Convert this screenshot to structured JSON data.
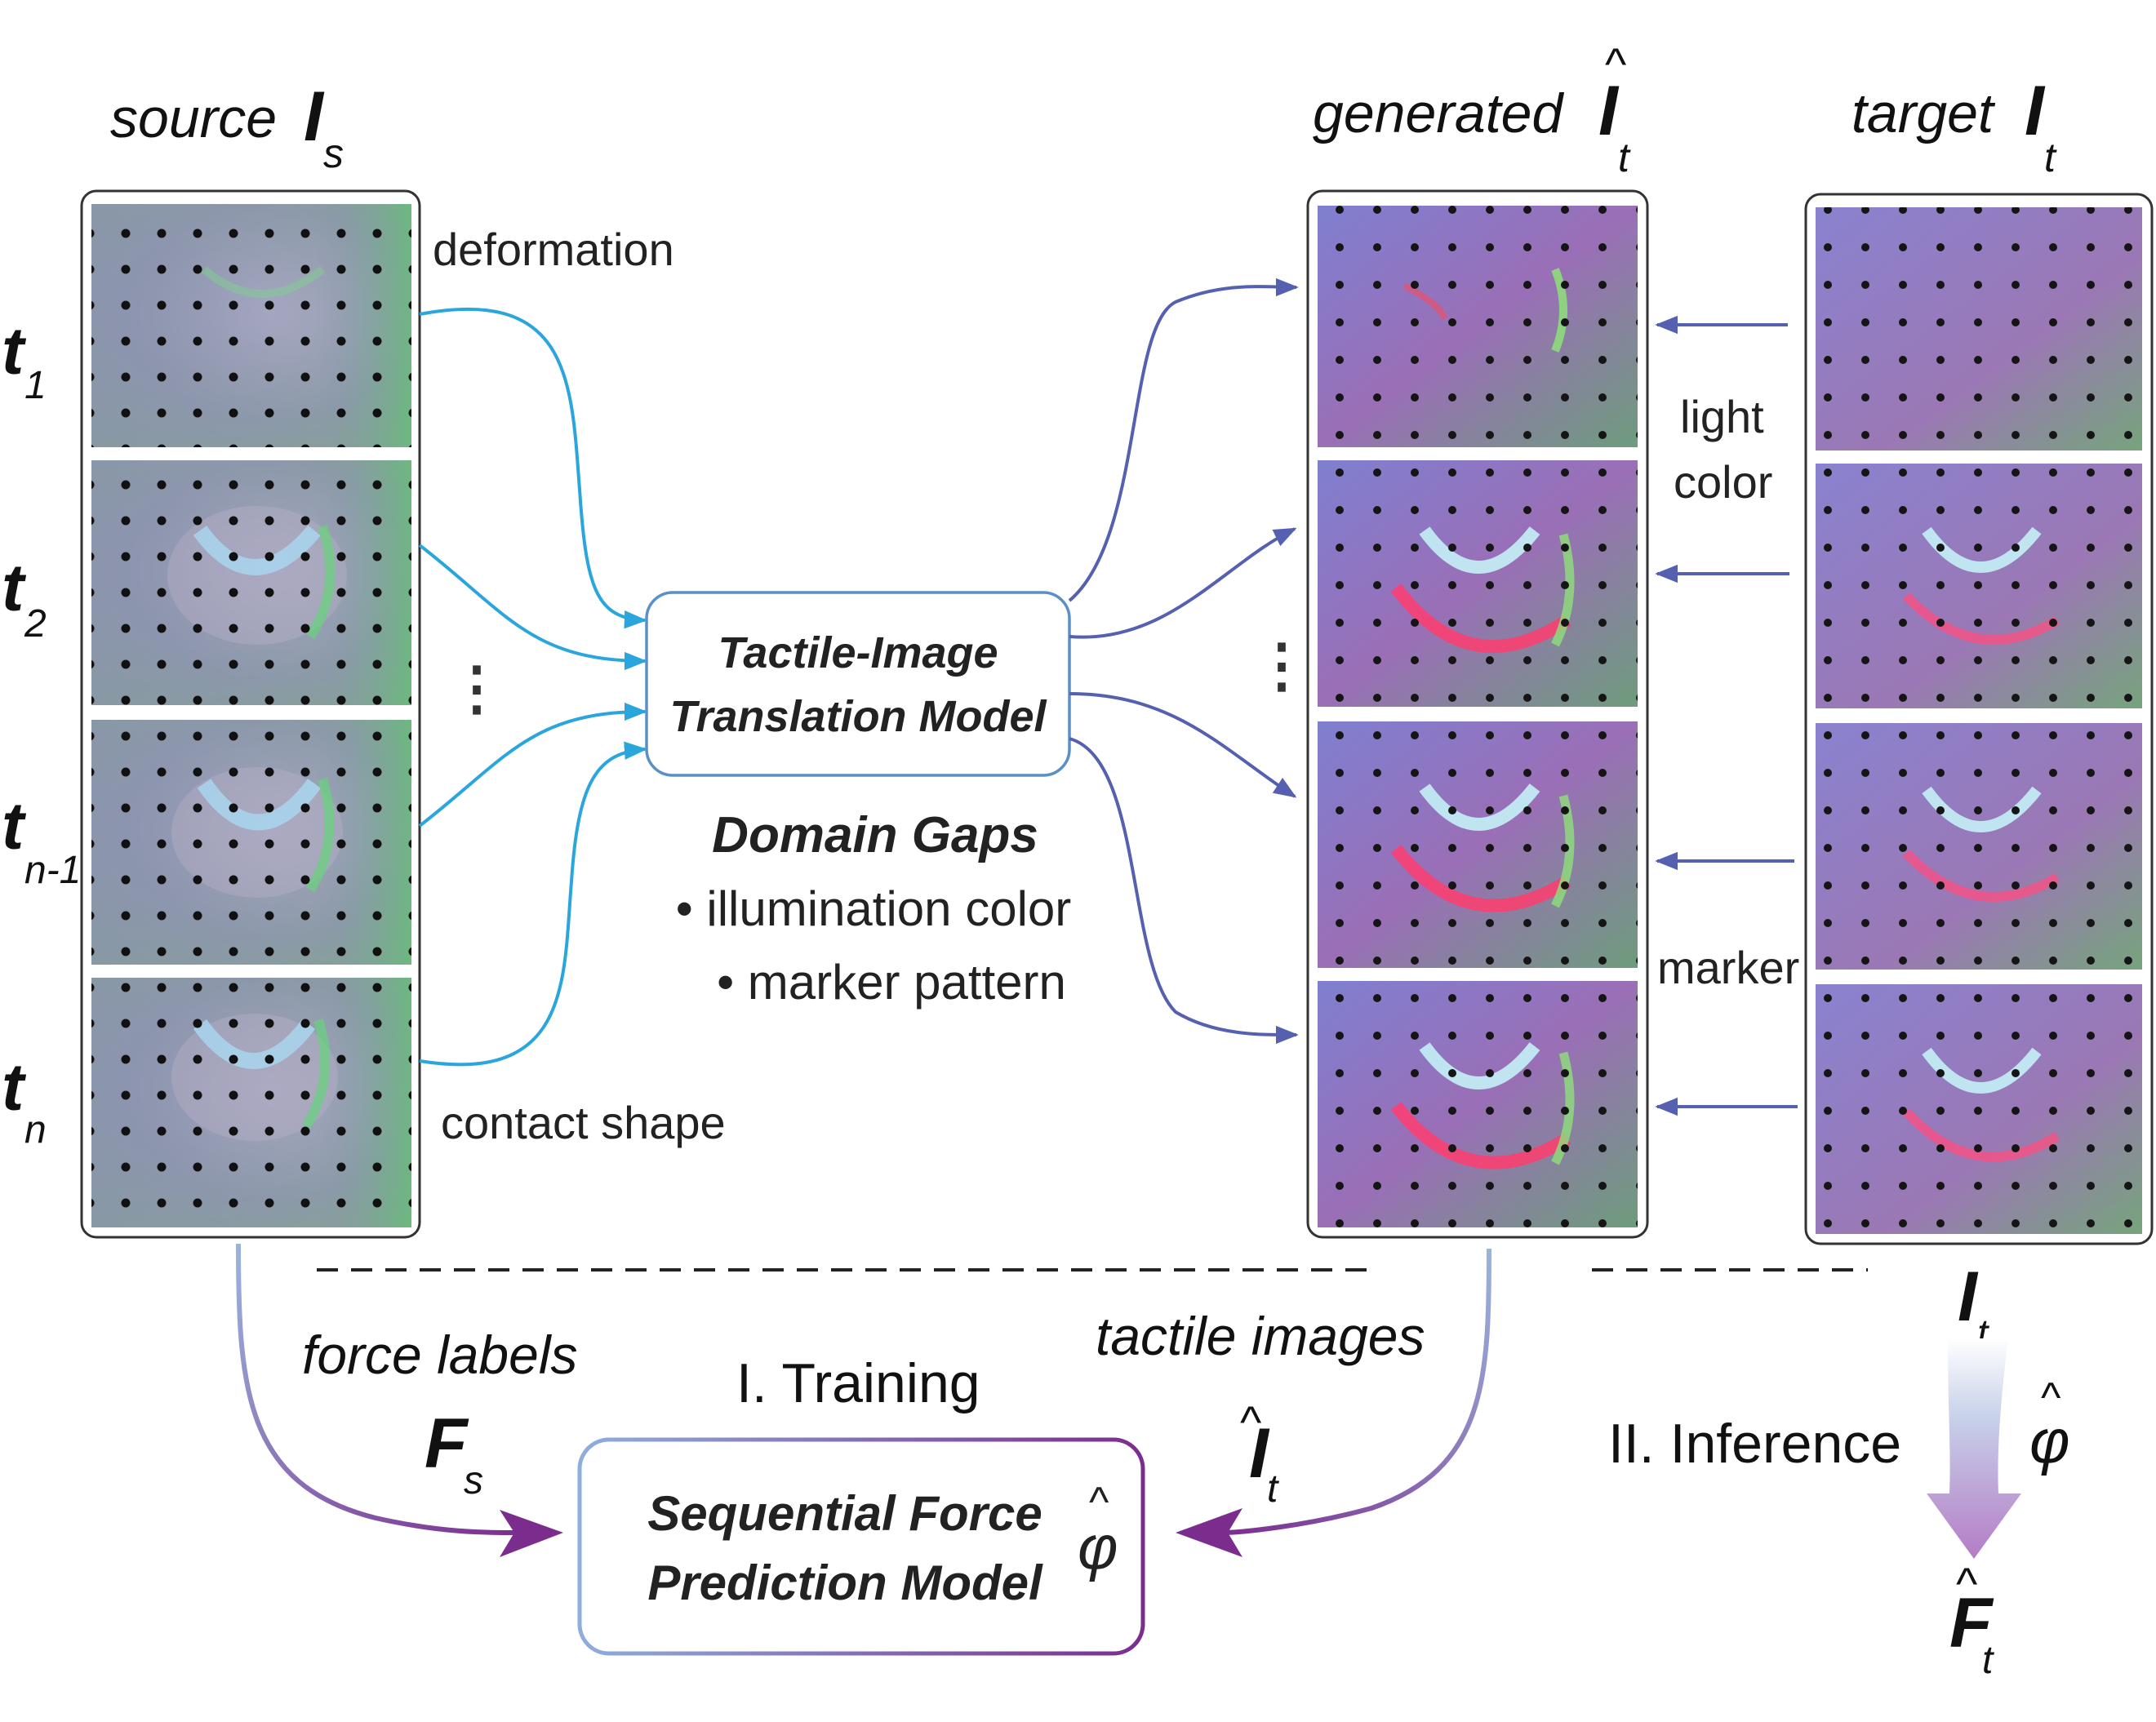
{
  "columns": {
    "source": {
      "word": "source",
      "symbol": "I",
      "sub": "s"
    },
    "generated": {
      "word": "generated",
      "symbol": "I",
      "hat": "^",
      "sub": "t"
    },
    "target": {
      "word": "target",
      "symbol": "I",
      "sub": "t"
    }
  },
  "time_labels": [
    {
      "t": "t",
      "sub": "1"
    },
    {
      "t": "t",
      "sub": "2"
    },
    {
      "t": "t",
      "sub": "n-1"
    },
    {
      "t": "t",
      "sub": "n"
    }
  ],
  "annotations": {
    "deformation": "deformation",
    "contact_shape": "contact shape",
    "light": "light",
    "color": "color",
    "marker": "marker",
    "ellipsis": "⋮"
  },
  "translation_model": {
    "line1": "Tactile-Image",
    "line2": "Translation Model"
  },
  "domain_gaps": {
    "title": "Domain Gaps",
    "items": [
      "• illumination color",
      "• marker pattern"
    ]
  },
  "training": {
    "stage_label": "I. Training",
    "force_labels": "force labels",
    "force_symbol": {
      "main": "F",
      "sub": "s"
    },
    "tactile_images": "tactile images",
    "tactile_symbol": {
      "hat": "^",
      "main": "I",
      "sub": "t"
    }
  },
  "force_model": {
    "line1": "Sequential Force",
    "line2": "Prediction Model",
    "symbol": "φ",
    "hat": "^"
  },
  "inference": {
    "stage_label": "II. Inference",
    "input_symbol": {
      "main": "I",
      "sub": "t"
    },
    "model_symbol": {
      "main": "φ",
      "hat": "^"
    },
    "output_symbol": {
      "hat": "^",
      "main": "F",
      "sub": "t"
    }
  },
  "colors": {
    "cyan_arrow": "#2aa6dc",
    "blue_arrow": "#5561b0",
    "purple": "#7b2d8e",
    "box_blue": "#5a8fc8",
    "frame": "#333333"
  }
}
